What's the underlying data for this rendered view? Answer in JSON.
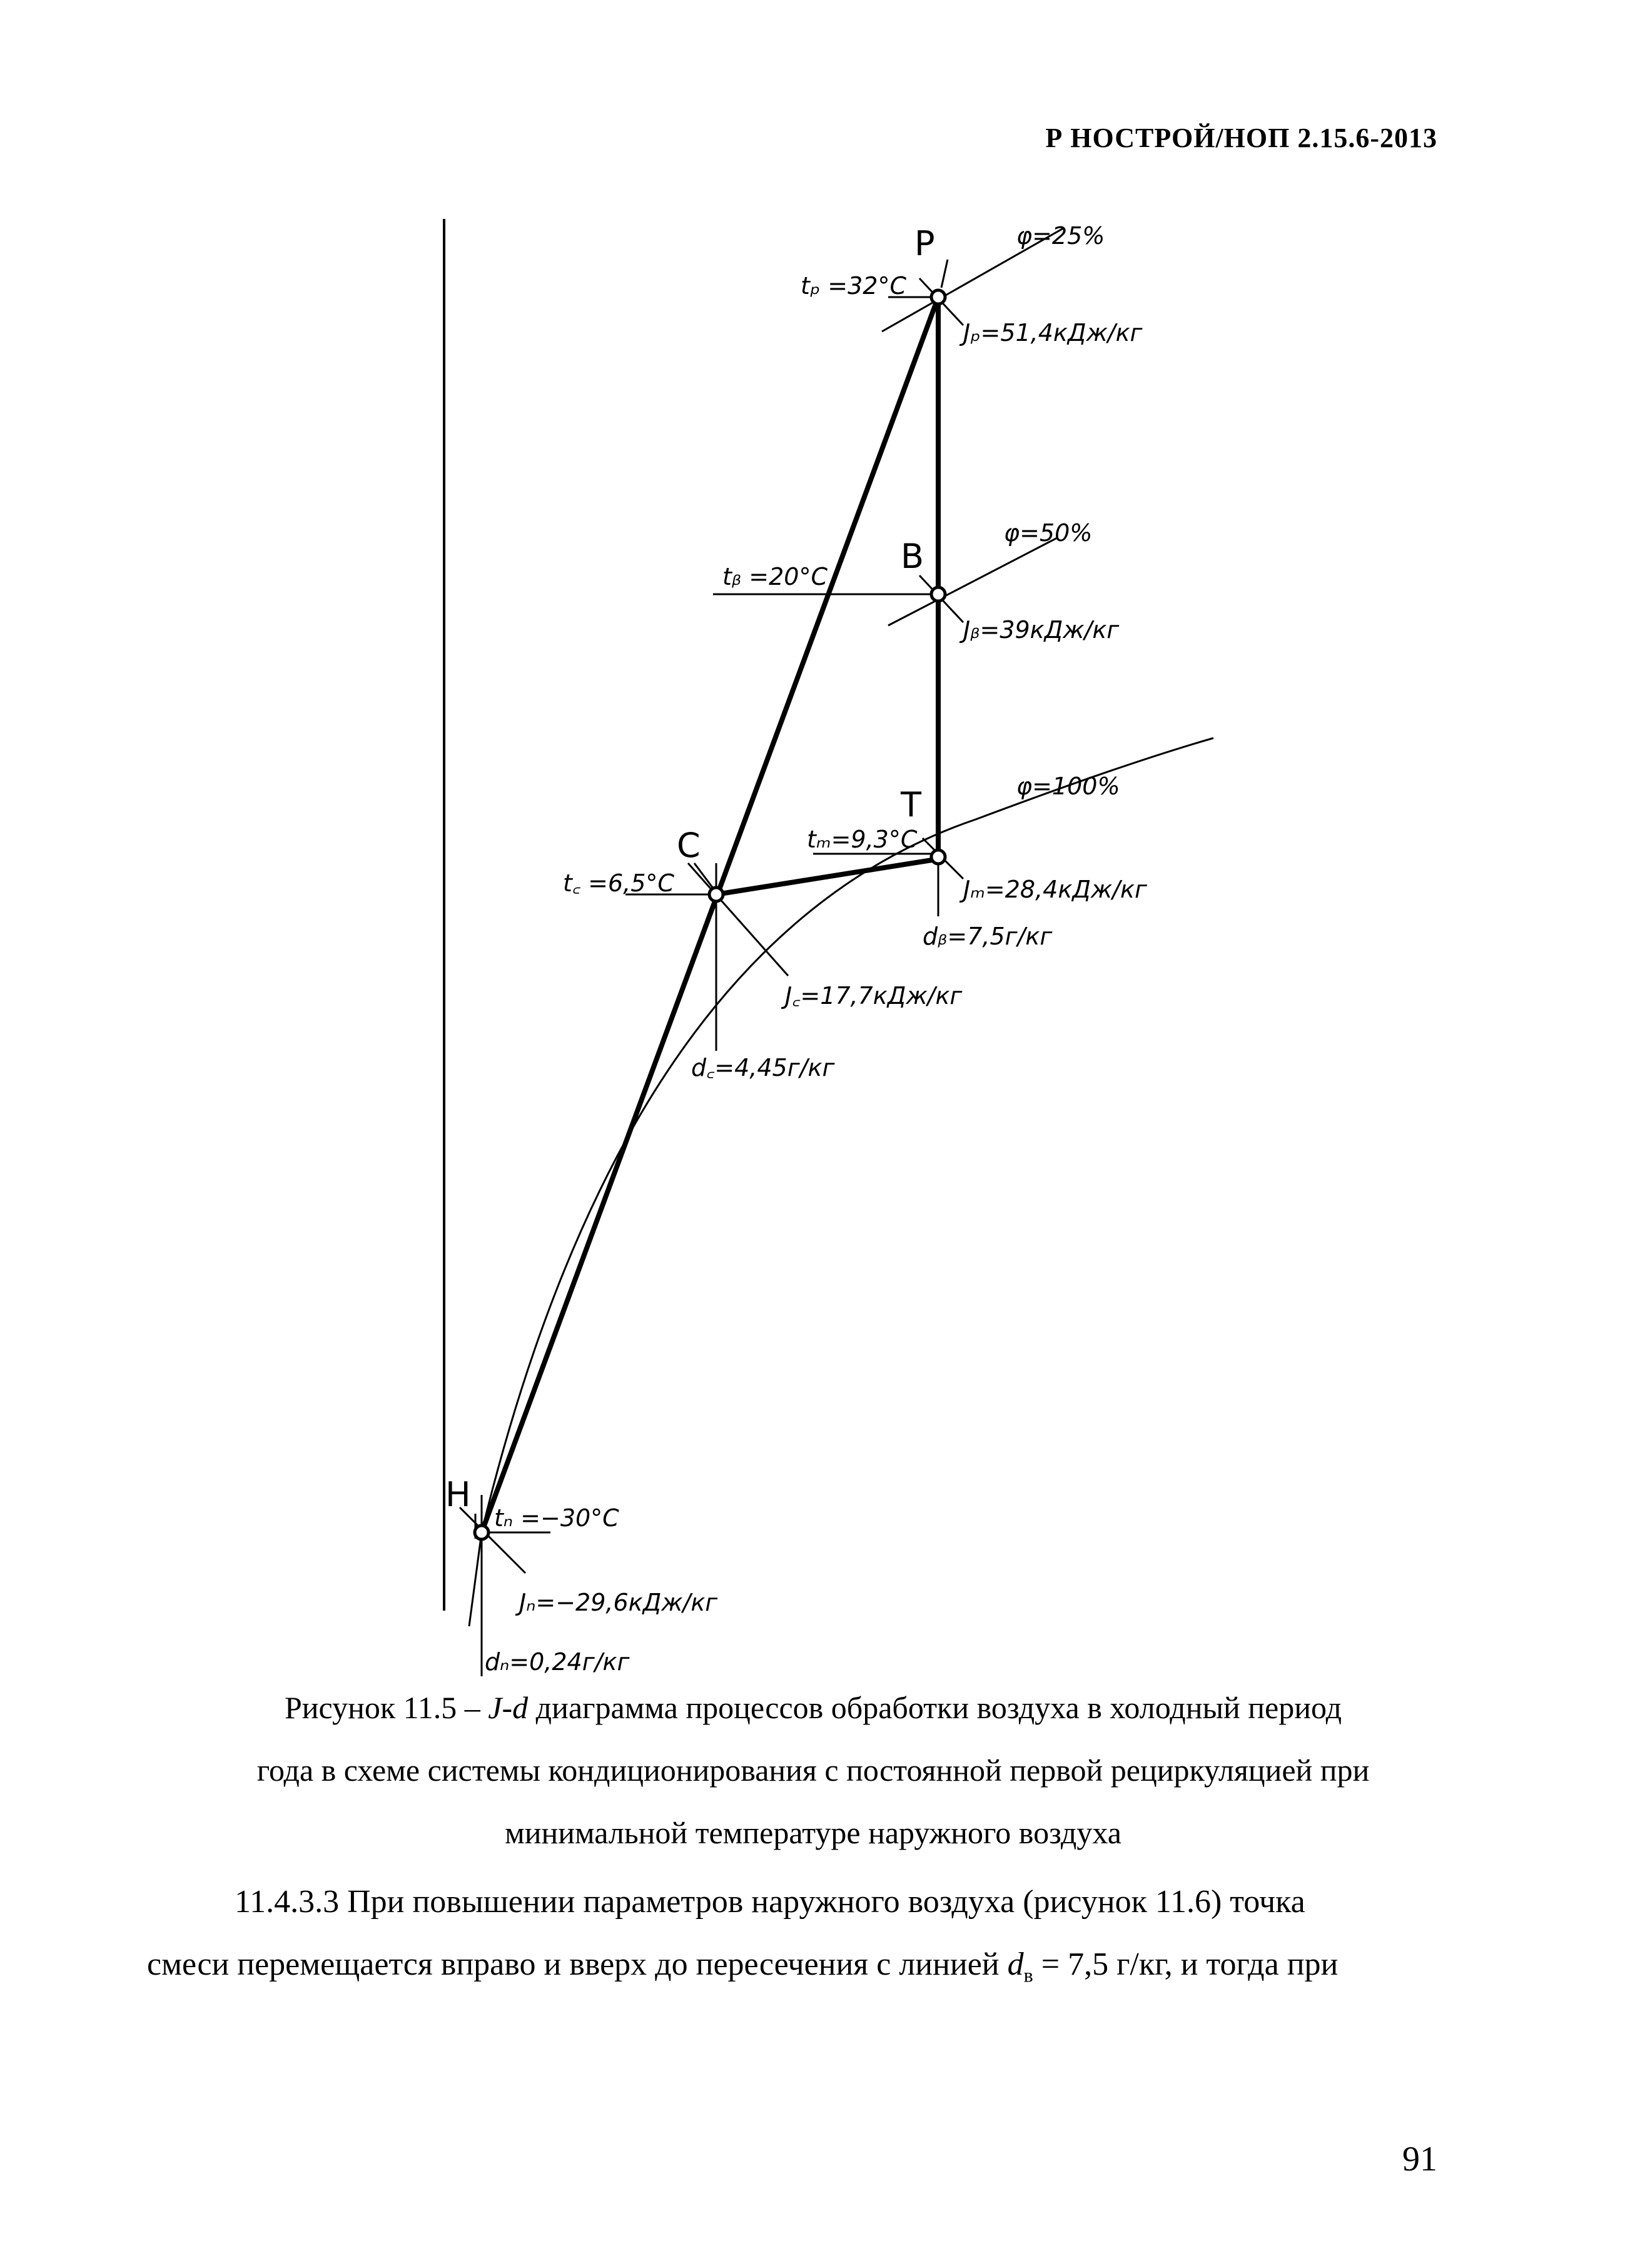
{
  "header": {
    "doc_code": "Р НОСТРОЙ/НОП 2.15.6-2013"
  },
  "diagram": {
    "points": {
      "P": "P",
      "B": "B",
      "T": "T",
      "C": "C",
      "H": "H"
    },
    "phi": {
      "p25": "φ=25%",
      "p50": "φ=50%",
      "p100": "φ=100%"
    },
    "P": {
      "t": "tₚ =32°C",
      "J": "Jₚ=51,4кДж/кг"
    },
    "B": {
      "t": "tᵦ =20°C",
      "J": "Jᵦ=39кДж/кг"
    },
    "T": {
      "t": "tₘ=9,3°C",
      "J": "Jₘ=28,4кДж/кг",
      "d": "dᵦ=7,5г/кг"
    },
    "C": {
      "t": "t꜀ =6,5°C",
      "J": "J꜀=17,7кДж/кг",
      "d": "d꜀=4,45г/кг"
    },
    "H": {
      "t": "tₙ =−30°C",
      "J": "Jₙ=−29,6кДж/кг",
      "d": "dₙ=0,24г/кг"
    }
  },
  "caption": {
    "line1_prefix": "Рисунок 11.5 – ",
    "line1_ital": "J-d",
    "line1_suffix": " диаграмма процессов обработки воздуха в холодный период",
    "line2": "года в схеме системы кондиционирования с постоянной первой рециркуляцией при",
    "line3": "минимальной температуре наружного воздуха"
  },
  "paragraph": {
    "line1": "11.4.3.3 При повышении параметров наружного воздуха (рисунок 11.6) точка",
    "line2_pre": "смеси перемещается вправо и вверх до пересечения с линией ",
    "line2_var": "d",
    "line2_sub": "в",
    "line2_post": " = 7,5 г/кг, и тогда при"
  },
  "page_number": "91"
}
